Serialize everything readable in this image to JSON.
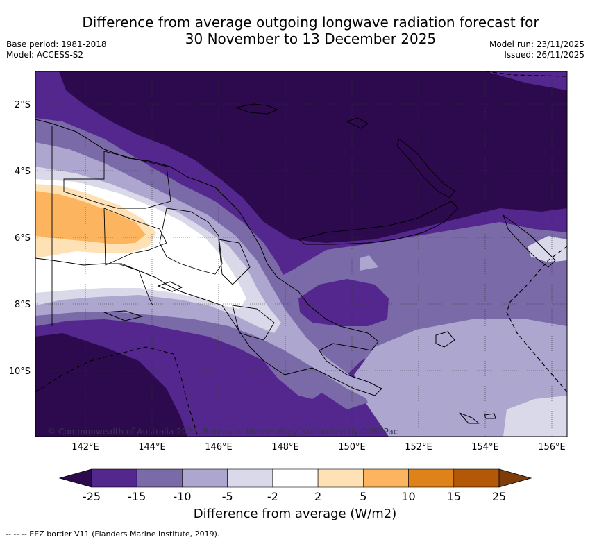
{
  "title_line1": "Difference from average outgoing longwave radiation forecast for",
  "title_line2": "30 November to 13 December 2025",
  "base_period": "Base period: 1981-2018",
  "model": "Model: ACCESS-S2",
  "model_run": "Model run: 23/11/2025",
  "issued": "Issued: 26/11/2025",
  "copyright": "© Commonwealth of Australia 2025, Bureau of Meteorology, supported by COSPPac",
  "lat_labels": [
    "2°S",
    "4°S",
    "6°S",
    "8°S",
    "10°S"
  ],
  "lon_labels": [
    "142°E",
    "144°E",
    "146°E",
    "148°E",
    "150°E",
    "152°E",
    "154°E",
    "156°E"
  ],
  "colorbar": {
    "ticks": [
      "-25",
      "-15",
      "-10",
      "-5",
      "-2",
      "2",
      "5",
      "10",
      "15",
      "25"
    ],
    "colors": [
      "#2d0a4e",
      "#54278f",
      "#7b6aa8",
      "#ada7d0",
      "#d9d9ea",
      "#ffffff",
      "#fee2b6",
      "#fdb45e",
      "#e0821a",
      "#b35806",
      "#7f3b08"
    ],
    "title": "Difference from average (W/m2)"
  },
  "footnote": "--  --  -- EEZ border V11 (Flanders Marine Institute, 2019)."
}
